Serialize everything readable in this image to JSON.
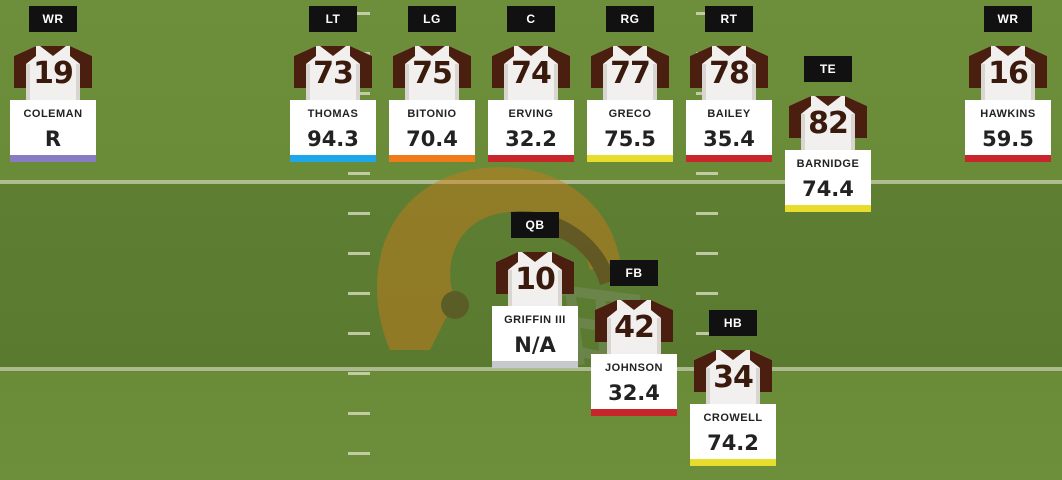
{
  "colors": {
    "field": "#6a8c39",
    "jersey_white": "#f2f0ee",
    "jersey_brown": "#4a1f0f",
    "number": "#3b1a0e",
    "label_bg": "#111111"
  },
  "players": [
    {
      "pos": "WR",
      "number": "19",
      "name": "COLEMAN",
      "grade": "R",
      "bar_color": "#8a7cc4"
    },
    {
      "pos": "LT",
      "number": "73",
      "name": "THOMAS",
      "grade": "94.3",
      "bar_color": "#1ea7e8"
    },
    {
      "pos": "LG",
      "number": "75",
      "name": "BITONIO",
      "grade": "70.4",
      "bar_color": "#f07a1a"
    },
    {
      "pos": "C",
      "number": "74",
      "name": "ERVING",
      "grade": "32.2",
      "bar_color": "#c8262b"
    },
    {
      "pos": "RG",
      "number": "77",
      "name": "GRECO",
      "grade": "75.5",
      "bar_color": "#e8dc2c"
    },
    {
      "pos": "RT",
      "number": "78",
      "name": "BAILEY",
      "grade": "35.4",
      "bar_color": "#c8262b"
    },
    {
      "pos": "TE",
      "number": "82",
      "name": "BARNIDGE",
      "grade": "74.4",
      "bar_color": "#e8dc2c"
    },
    {
      "pos": "WR",
      "number": "16",
      "name": "HAWKINS",
      "grade": "59.5",
      "bar_color": "#c8262b"
    },
    {
      "pos": "QB",
      "number": "10",
      "name": "GRIFFIN III",
      "grade": "N/A",
      "bar_color": "#c7c9cc"
    },
    {
      "pos": "FB",
      "number": "42",
      "name": "JOHNSON",
      "grade": "32.4",
      "bar_color": "#c8262b"
    },
    {
      "pos": "HB",
      "number": "34",
      "name": "CROWELL",
      "grade": "74.2",
      "bar_color": "#e8dc2c"
    }
  ]
}
